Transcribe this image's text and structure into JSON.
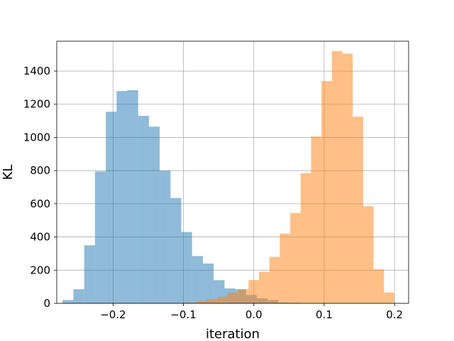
{
  "chart_data": {
    "type": "bar",
    "subtype": "histogram",
    "xlabel": "iteration",
    "ylabel": "KL",
    "xlim": [
      -0.28,
      0.22
    ],
    "ylim": [
      0,
      1580
    ],
    "grid": true,
    "xticks": [
      {
        "value": -0.2,
        "label": "−0.2"
      },
      {
        "value": -0.1,
        "label": "−0.1"
      },
      {
        "value": 0.0,
        "label": "0.0"
      },
      {
        "value": 0.1,
        "label": "0.1"
      },
      {
        "value": 0.2,
        "label": "0.2"
      }
    ],
    "yticks": [
      {
        "value": 0,
        "label": "0"
      },
      {
        "value": 200,
        "label": "200"
      },
      {
        "value": 400,
        "label": "400"
      },
      {
        "value": 600,
        "label": "600"
      },
      {
        "value": 800,
        "label": "800"
      },
      {
        "value": 1000,
        "label": "1000"
      },
      {
        "value": 1200,
        "label": "1200"
      },
      {
        "value": 1400,
        "label": "1400"
      }
    ],
    "series": [
      {
        "color": "#1f77b4",
        "opacity": 0.5,
        "bin_edges": [
          -0.2717,
          -0.2564,
          -0.241,
          -0.2257,
          -0.2103,
          -0.195,
          -0.1797,
          -0.1643,
          -0.149,
          -0.1337,
          -0.1183,
          -0.103,
          -0.0877,
          -0.0723,
          -0.057,
          -0.0416,
          -0.0263,
          -0.011,
          0.0044,
          0.0197,
          0.035,
          0.0504,
          0.0657
        ],
        "counts": [
          20,
          85,
          350,
          795,
          1155,
          1280,
          1285,
          1130,
          1065,
          800,
          635,
          430,
          285,
          240,
          140,
          90,
          85,
          50,
          30,
          20,
          5,
          3
        ]
      },
      {
        "color": "#ff7f0e",
        "opacity": 0.5,
        "bin_edges": [
          -0.111,
          -0.0962,
          -0.0814,
          -0.0666,
          -0.0518,
          -0.037,
          -0.0222,
          -0.0074,
          0.0074,
          0.0222,
          0.037,
          0.0518,
          0.0666,
          0.0814,
          0.0962,
          0.111,
          0.1258,
          0.1406,
          0.1554,
          0.1702,
          0.185,
          0.1998
        ],
        "counts": [
          2,
          5,
          15,
          25,
          40,
          65,
          85,
          140,
          190,
          280,
          420,
          545,
          785,
          1005,
          1340,
          1520,
          1505,
          1125,
          585,
          205,
          65
        ]
      }
    ]
  }
}
